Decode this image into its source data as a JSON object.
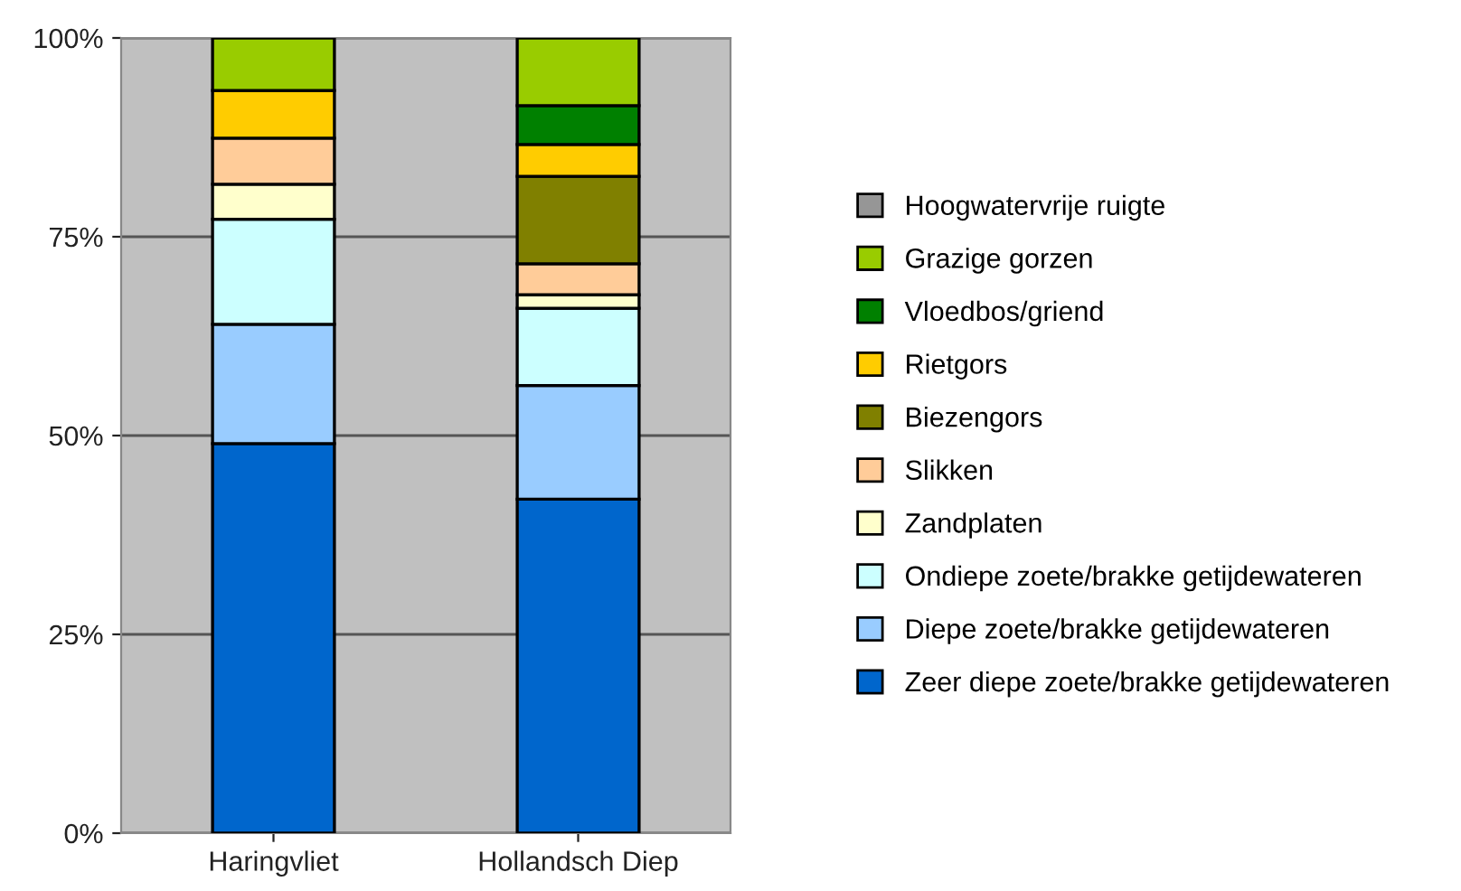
{
  "chart_data": {
    "type": "bar",
    "stacked": true,
    "categories": [
      "Haringvliet",
      "Hollandsch Diep"
    ],
    "series": [
      {
        "name": "Zeer diepe zoete/brakke getijdewateren",
        "color": "#0066cc",
        "values": [
          49,
          42
        ]
      },
      {
        "name": "Diepe zoete/brakke getijdewateren",
        "color": "#99ccff",
        "values": [
          15,
          14.3
        ]
      },
      {
        "name": "Ondiepe zoete/brakke getijdewateren",
        "color": "#ccffff",
        "values": [
          13.2,
          9.7
        ]
      },
      {
        "name": "Zandplaten",
        "color": "#ffffcc",
        "values": [
          4.4,
          1.7
        ]
      },
      {
        "name": "Slikken",
        "color": "#ffcc99",
        "values": [
          5.8,
          3.9
        ]
      },
      {
        "name": "Biezengors",
        "color": "#808000",
        "values": [
          0,
          11
        ]
      },
      {
        "name": "Rietgors",
        "color": "#ffcc00",
        "values": [
          6,
          4
        ]
      },
      {
        "name": "Vloedbos/griend",
        "color": "#008000",
        "values": [
          0,
          4.9
        ]
      },
      {
        "name": "Grazige gorzen",
        "color": "#99cc00",
        "values": [
          6.6,
          8.5
        ]
      },
      {
        "name": "Hoogwatervrije ruigte",
        "color": "#969696",
        "values": [
          0,
          0
        ]
      }
    ],
    "ylim": [
      0,
      100
    ],
    "yticks": [
      {
        "value": 0,
        "label": "0%"
      },
      {
        "value": 25,
        "label": "25%"
      },
      {
        "value": 50,
        "label": "50%"
      },
      {
        "value": 75,
        "label": "75%"
      },
      {
        "value": 100,
        "label": "100%"
      }
    ],
    "grid": "y",
    "legend": "right"
  }
}
